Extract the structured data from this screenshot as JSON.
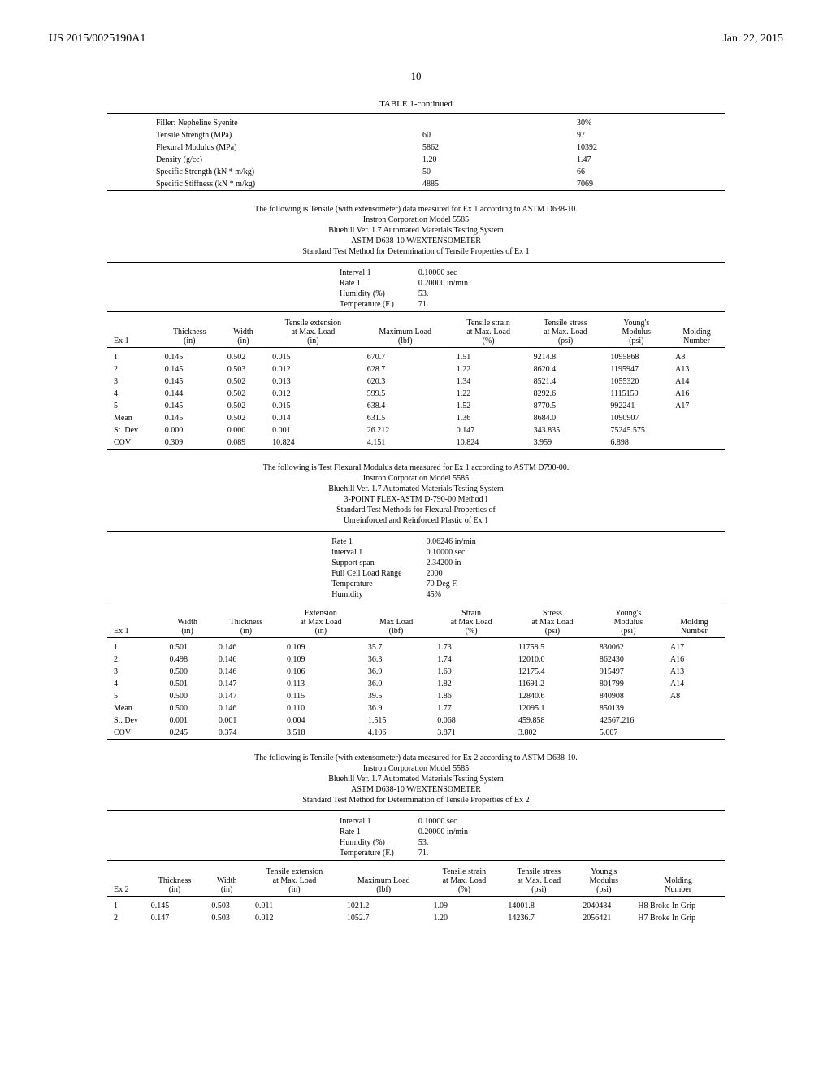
{
  "header": {
    "left": "US 2015/0025190A1",
    "right": "Jan. 22, 2015"
  },
  "page_number": "10",
  "table1": {
    "caption": "TABLE 1-continued",
    "rows": [
      {
        "label": "Filler: Nepheline Syenite",
        "c1": "",
        "c2": "30%"
      },
      {
        "label": "Tensile Strength (MPa)",
        "c1": "60",
        "c2": "97"
      },
      {
        "label": "Flexural Modulus (MPa)",
        "c1": "5862",
        "c2": "10392"
      },
      {
        "label": "Density (g/cc)",
        "c1": "1.20",
        "c2": "1.47"
      },
      {
        "label": "Specific Strength (kN * m/kg)",
        "c1": "50",
        "c2": "66"
      },
      {
        "label": "Specific Stiffness (kN * m/kg)",
        "c1": "4885",
        "c2": "7069"
      }
    ]
  },
  "section1": {
    "intro": [
      "The following is Tensile (with extensometer) data measured for Ex 1 according to ASTM D638-10.",
      "Instron Corporation Model 5585",
      "Bluehill Ver. 1.7 Automated Materials Testing System",
      "ASTM D638-10 W/EXTENSOMETER",
      "Standard Test Method for Determination of Tensile Properties of Ex 1"
    ],
    "params": [
      {
        "l": "Interval 1",
        "r": "0.10000  sec"
      },
      {
        "l": "Rate 1",
        "r": "0.20000  in/min"
      },
      {
        "l": "Humidity (%)",
        "r": "53."
      },
      {
        "l": "Temperature (F.)",
        "r": "71."
      }
    ],
    "head_label": "Ex 1",
    "cols": [
      "",
      "Thickness (in)",
      "Width (in)",
      "Tensile extension at Max. Load (in)",
      "Maximum Load (lbf)",
      "Tensile strain at Max. Load (%)",
      "Tensile stress at Max. Load (psi)",
      "Young's Modulus (psi)",
      "Molding Number"
    ],
    "rows": [
      [
        "1",
        "0.145",
        "0.502",
        "0.015",
        "670.7",
        "1.51",
        "9214.8",
        "1095868",
        "A8"
      ],
      [
        "2",
        "0.145",
        "0.503",
        "0.012",
        "628.7",
        "1.22",
        "8620.4",
        "1195947",
        "A13"
      ],
      [
        "3",
        "0.145",
        "0.502",
        "0.013",
        "620.3",
        "1.34",
        "8521.4",
        "1055320",
        "A14"
      ],
      [
        "4",
        "0.144",
        "0.502",
        "0.012",
        "599.5",
        "1.22",
        "8292.6",
        "1115159",
        "A16"
      ],
      [
        "5",
        "0.145",
        "0.502",
        "0.015",
        "638.4",
        "1.52",
        "8770.5",
        "992241",
        "A17"
      ],
      [
        "Mean",
        "0.145",
        "0.502",
        "0.014",
        "631.5",
        "1.36",
        "8684.0",
        "1090907",
        ""
      ],
      [
        "St. Dev",
        "0.000",
        "0.000",
        "0.001",
        "26.212",
        "0.147",
        "343.835",
        "75245.575",
        ""
      ],
      [
        "COV",
        "0.309",
        "0.089",
        "10.824",
        "4.151",
        "10.824",
        "3.959",
        "6.898",
        ""
      ]
    ]
  },
  "section2": {
    "intro": [
      "The following is Test Flexural Modulus data measured for Ex 1 according to ASTM D790-00.",
      "Instron Corporation Model 5585",
      "Bluehill Ver. 1.7 Automated Materials Testing System",
      "3-POINT FLEX-ASTM D-790-00 Method I",
      "Standard Test Methods for Flexural Properties of",
      "Unreinforced and Reinforced Plastic of Ex 1"
    ],
    "params": [
      {
        "l": "Rate 1",
        "r": "0.06246  in/min"
      },
      {
        "l": "interval 1",
        "r": "0.10000  sec"
      },
      {
        "l": "Support span",
        "r": "2.34200  in"
      },
      {
        "l": "Full Cell Load Range",
        "r": "2000"
      },
      {
        "l": "Temperature",
        "r": "70  Deg F."
      },
      {
        "l": "Humidity",
        "r": "45%"
      }
    ],
    "head_label": "Ex 1",
    "cols": [
      "",
      "Width (in)",
      "Thickness (in)",
      "Extension at Max Load (in)",
      "Max Load (lbf)",
      "Strain at Max Load (%)",
      "Stress at Max Load (psi)",
      "Young's Modulus (psi)",
      "Molding Number"
    ],
    "rows": [
      [
        "1",
        "0.501",
        "0.146",
        "0.109",
        "35.7",
        "1.73",
        "11758.5",
        "830062",
        "A17"
      ],
      [
        "2",
        "0.498",
        "0.146",
        "0.109",
        "36.3",
        "1.74",
        "12010.0",
        "862430",
        "A16"
      ],
      [
        "3",
        "0.500",
        "0.146",
        "0.106",
        "36.9",
        "1.69",
        "12175.4",
        "915497",
        "A13"
      ],
      [
        "4",
        "0.501",
        "0.147",
        "0.113",
        "36.0",
        "1.82",
        "11691.2",
        "801799",
        "A14"
      ],
      [
        "5",
        "0.500",
        "0.147",
        "0.115",
        "39.5",
        "1.86",
        "12840.6",
        "840908",
        "A8"
      ],
      [
        "Mean",
        "0.500",
        "0.146",
        "0.110",
        "36.9",
        "1.77",
        "12095.1",
        "850139",
        ""
      ],
      [
        "St. Dev",
        "0.001",
        "0.001",
        "0.004",
        "1.515",
        "0.068",
        "459.858",
        "42567.216",
        ""
      ],
      [
        "COV",
        "0.245",
        "0.374",
        "3.518",
        "4.106",
        "3.871",
        "3.802",
        "5.007",
        ""
      ]
    ]
  },
  "section3": {
    "intro": [
      "The following is Tensile (with extensometer) data measured for Ex 2 according to ASTM D638-10.",
      "Instron Corporation Model 5585",
      "Bluehill Ver. 1.7 Automated Materials Testing System",
      "ASTM D638-10 W/EXTENSOMETER",
      "Standard Test Method for Determination of Tensile Properties of Ex 2"
    ],
    "params": [
      {
        "l": "Interval 1",
        "r": "0.10000  sec"
      },
      {
        "l": "Rate 1",
        "r": "0.20000  in/min"
      },
      {
        "l": "Humidity (%)",
        "r": "53."
      },
      {
        "l": "Temperature (F.)",
        "r": "71."
      }
    ],
    "head_label": "Ex 2",
    "cols": [
      "",
      "Thickness (in)",
      "Width (in)",
      "Tensile extension at Max. Load (in)",
      "Maximum Load (lbf)",
      "Tensile strain at Max. Load (%)",
      "Tensile stress at Max. Load (psi)",
      "Young's Modulus (psi)",
      "Molding Number"
    ],
    "rows": [
      [
        "1",
        "0.145",
        "0.503",
        "0.011",
        "1021.2",
        "1.09",
        "14001.8",
        "2040484",
        "H8 Broke In Grip"
      ],
      [
        "2",
        "0.147",
        "0.503",
        "0.012",
        "1052.7",
        "1.20",
        "14236.7",
        "2056421",
        "H7 Broke In Grip"
      ]
    ]
  }
}
